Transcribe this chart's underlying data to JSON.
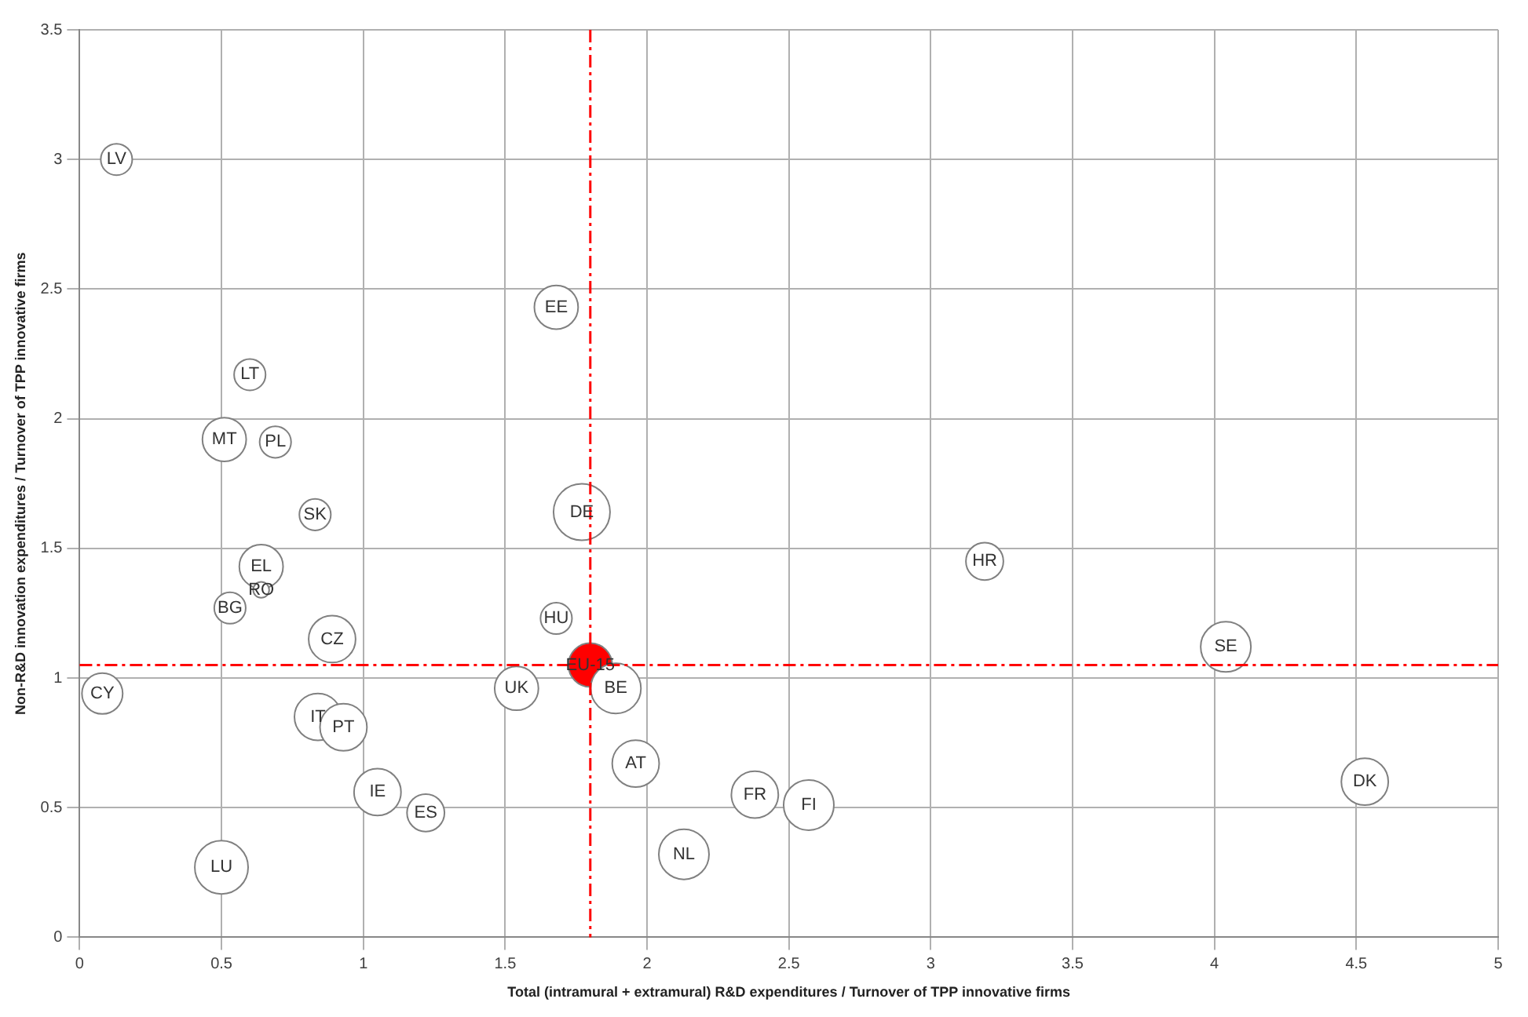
{
  "chart_data": {
    "type": "bubble",
    "xlabel": "Total (intramural + extramural) R&D expenditures / Turnover of TPP innovative firms",
    "ylabel": "Non-R&D innovation expenditures / Turnover of TPP innovative firms",
    "xlim": [
      0,
      5
    ],
    "xticks": [
      0,
      0.5,
      1,
      1.5,
      2,
      2.5,
      3,
      3.5,
      4,
      4.5,
      5
    ],
    "ylim": [
      0,
      3.5
    ],
    "yticks": [
      0,
      0.5,
      1,
      1.5,
      2,
      2.5,
      3,
      3.5
    ],
    "grid": true,
    "legend": false,
    "x": [
      0.13,
      1.68,
      0.6,
      0.51,
      0.69,
      0.83,
      1.77,
      0.64,
      0.64,
      0.53,
      1.68,
      0.89,
      1.8,
      0.08,
      1.54,
      1.89,
      0.84,
      0.93,
      1.96,
      1.05,
      1.22,
      2.38,
      2.57,
      2.13,
      0.5,
      3.19,
      4.04,
      4.53
    ],
    "values": [
      3.0,
      2.43,
      2.17,
      1.92,
      1.91,
      1.63,
      1.64,
      1.43,
      1.34,
      1.27,
      1.23,
      1.15,
      1.05,
      0.94,
      0.96,
      0.96,
      0.85,
      0.81,
      0.67,
      0.56,
      0.48,
      0.55,
      0.51,
      0.32,
      0.27,
      1.45,
      1.12,
      0.6
    ],
    "sizes": [
      0.31,
      0.6,
      0.31,
      0.6,
      0.31,
      0.31,
      1,
      0.6,
      0.08,
      0.31,
      0.31,
      0.69,
      0.6,
      0.52,
      0.6,
      0.79,
      0.69,
      0.69,
      0.69,
      0.69,
      0.44,
      0.69,
      0.79,
      0.79,
      0.89,
      0.44,
      0.79,
      0.69
    ],
    "value_labels": [
      "LV",
      "EE",
      "LT",
      "MT",
      "PL",
      "SK",
      "DE",
      "EL",
      "RO",
      "BG",
      "HU",
      "CZ",
      "EU-15",
      "CY",
      "UK",
      "BE",
      "IT",
      "PT",
      "AT",
      "IE",
      "ES",
      "FR",
      "FI",
      "NL",
      "LU",
      "HR",
      "SE",
      "DK"
    ],
    "colors": [
      "#ffffff",
      "#ffffff",
      "#ffffff",
      "#ffffff",
      "#ffffff",
      "#ffffff",
      "#ffffff",
      "#ffffff",
      "#ffffff",
      "#ffffff",
      "#ffffff",
      "#ffffff",
      "#ff0000",
      "#ffffff",
      "#ffffff",
      "#ffffff",
      "#ffffff",
      "#ffffff",
      "#ffffff",
      "#ffffff",
      "#ffffff",
      "#ffffff",
      "#ffffff",
      "#ffffff",
      "#ffffff",
      "#ffffff",
      "#ffffff",
      "#ffffff"
    ],
    "ref_lines": [
      {
        "axis": "x",
        "value": 1.8,
        "color": "#ff0000",
        "line_style": "dashed"
      },
      {
        "axis": "y",
        "value": 1.05,
        "color": "#ff0000",
        "line_style": "dashed"
      }
    ]
  }
}
